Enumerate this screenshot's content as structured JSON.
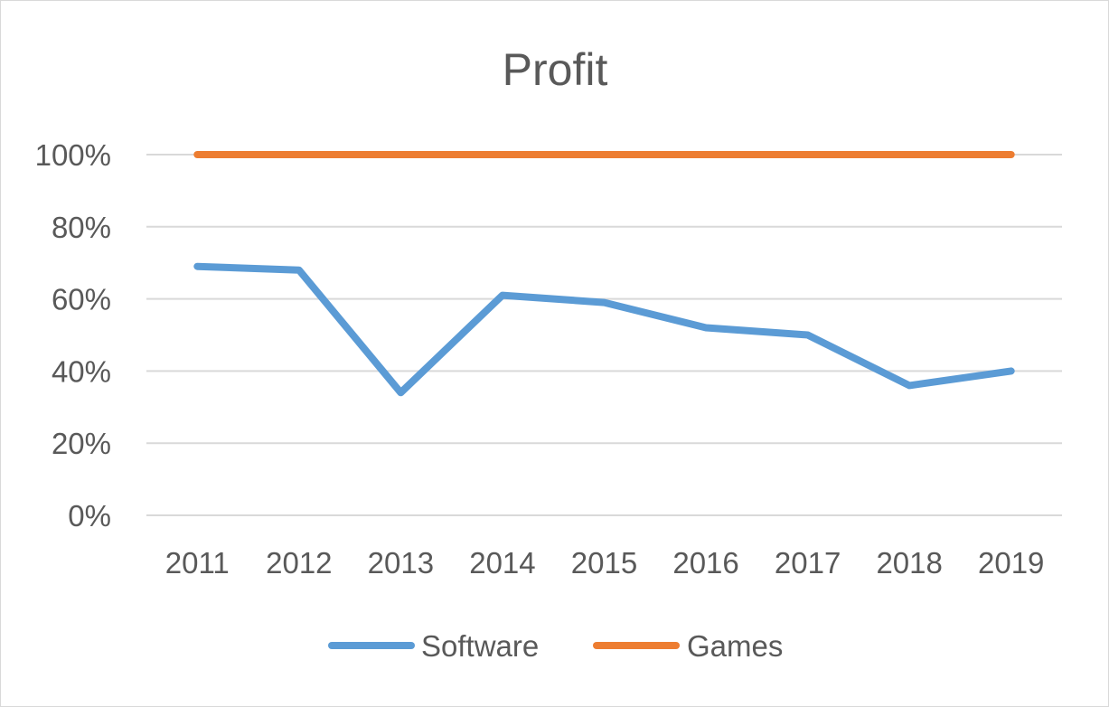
{
  "chart_data": {
    "type": "line",
    "title": "Profit",
    "xlabel": "",
    "ylabel": "",
    "categories": [
      "2011",
      "2012",
      "2013",
      "2014",
      "2015",
      "2016",
      "2017",
      "2018",
      "2019"
    ],
    "ylim": [
      0,
      1
    ],
    "yticks": [
      {
        "value": 0,
        "label": "0%"
      },
      {
        "value": 0.2,
        "label": "20%"
      },
      {
        "value": 0.4,
        "label": "40%"
      },
      {
        "value": 0.6,
        "label": "60%"
      },
      {
        "value": 0.8,
        "label": "80%"
      },
      {
        "value": 1.0,
        "label": "100%"
      }
    ],
    "grid": true,
    "legend_position": "bottom",
    "series": [
      {
        "name": "Software",
        "color": "#5b9bd5",
        "values": [
          0.69,
          0.68,
          0.34,
          0.61,
          0.59,
          0.52,
          0.5,
          0.36,
          0.4
        ]
      },
      {
        "name": "Games",
        "color": "#ed7d31",
        "values": [
          1.0,
          1.0,
          1.0,
          1.0,
          1.0,
          1.0,
          1.0,
          1.0,
          1.0
        ]
      }
    ]
  }
}
